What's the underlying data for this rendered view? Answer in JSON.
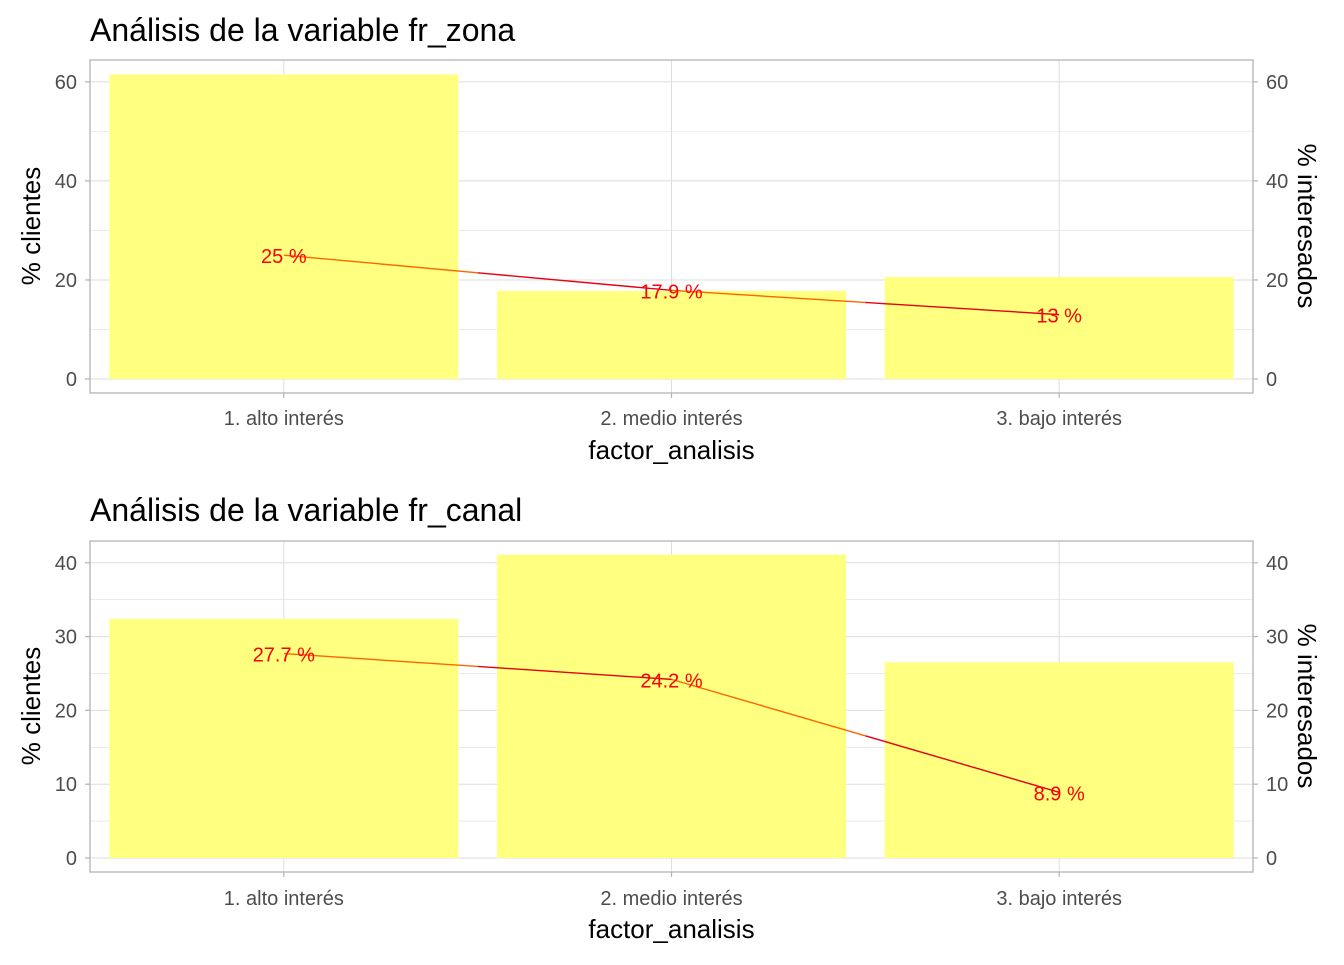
{
  "chart_data": [
    {
      "type": "bar",
      "title": "Análisis de la variable fr_zona",
      "xlabel": "factor_analisis",
      "ylabel": "% clientes",
      "ylabel_right": "% interesados",
      "categories": [
        "1. alto interés",
        "2. medio interés",
        "3. bajo interés"
      ],
      "series": [
        {
          "kind": "bar",
          "values": [
            61.5,
            17.8,
            20.6
          ],
          "color": "#ffff80"
        },
        {
          "kind": "line",
          "values": [
            25,
            17.9,
            13
          ],
          "color": "#ff6600"
        }
      ],
      "data_labels": [
        "25  %",
        "17.9  %",
        "13  %"
      ],
      "ylim": [
        0,
        63
      ],
      "yticks": [
        0,
        20,
        40,
        60
      ],
      "grid": true
    },
    {
      "type": "bar",
      "title": "Análisis de la variable fr_canal",
      "xlabel": "factor_analisis",
      "ylabel": "% clientes",
      "ylabel_right": "% interesados",
      "categories": [
        "1. alto interés",
        "2. medio interés",
        "3. bajo interés"
      ],
      "series": [
        {
          "kind": "bar",
          "values": [
            32.4,
            41.1,
            26.5
          ],
          "color": "#ffff80"
        },
        {
          "kind": "line",
          "values": [
            27.7,
            24.2,
            8.9
          ],
          "color": "#ff6600"
        }
      ],
      "data_labels": [
        "27.7  %",
        "24.2  %",
        "8.9  %"
      ],
      "ylim": [
        0,
        42
      ],
      "yticks": [
        0,
        10,
        20,
        30,
        40
      ],
      "grid": true
    }
  ],
  "colors": {
    "bar": "#ffff80",
    "line": "#ff6600",
    "line_mid": "#e8000f",
    "label": "#ff0000",
    "grid": "#dedede",
    "axis": "#b3b3b3",
    "tick_text": "#4d4d4d",
    "title_text": "#000000"
  }
}
